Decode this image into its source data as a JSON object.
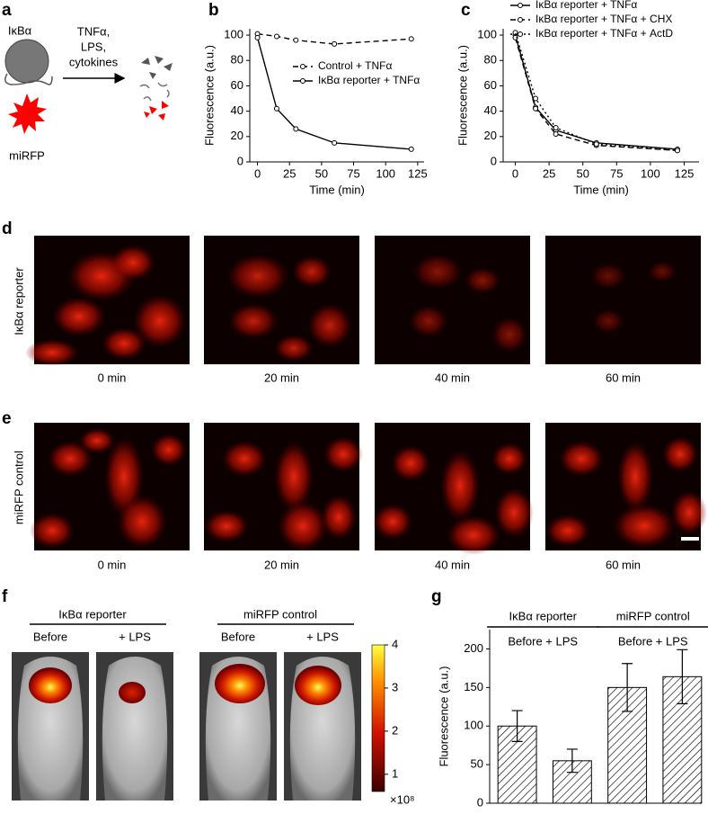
{
  "panel_labels": [
    "a",
    "b",
    "c",
    "d",
    "e",
    "f",
    "g"
  ],
  "panel_a": {
    "protein": "IκBα",
    "stimuli": [
      "TNFα,",
      "LPS,",
      "cytokines"
    ],
    "fluorophore": "miRFP"
  },
  "chart_data": [
    {
      "type": "line",
      "xlabel": "Time (min)",
      "ylabel": "Fluorescence (a.u.)",
      "x": [
        0,
        15,
        30,
        60,
        120
      ],
      "series": [
        {
          "name": "Control + TNFα",
          "color": "#000000",
          "line_style": "dashed",
          "values": [
            101,
            99,
            96,
            93,
            97
          ]
        },
        {
          "name": "IκBα reporter + TNFα",
          "color": "#000000",
          "line_style": "solid",
          "values": [
            98,
            42,
            26,
            15,
            10
          ]
        }
      ],
      "xlim": [
        -6,
        130
      ],
      "xticks": [
        0,
        25,
        50,
        75,
        100,
        125
      ],
      "ylim": [
        0,
        105
      ],
      "yticks": [
        0,
        20,
        40,
        60,
        80,
        100
      ],
      "legend": "center-right"
    },
    {
      "type": "line",
      "xlabel": "Time (min)",
      "ylabel": "Fluorescence (a.u.)",
      "x": [
        0,
        15,
        30,
        60,
        120
      ],
      "series": [
        {
          "name": "IκBα reporter + TNFα",
          "color": "#000000",
          "line_style": "solid",
          "values": [
            100,
            43,
            25,
            15,
            10
          ]
        },
        {
          "name": "IκBα reporter + TNFα + CHX",
          "color": "#000000",
          "line_style": "dashed",
          "values": [
            98,
            42,
            22,
            13,
            9
          ]
        },
        {
          "name": "IκBα reporter + TNFα + ActD",
          "color": "#000000",
          "line_style": "dotted",
          "values": [
            102,
            50,
            27,
            14,
            9
          ]
        }
      ],
      "xlim": [
        -9,
        136
      ],
      "xticks": [
        0,
        25,
        50,
        75,
        100,
        125
      ],
      "ylim": [
        0,
        105
      ],
      "yticks": [
        0,
        20,
        40,
        60,
        80,
        100
      ],
      "legend": "top-right"
    },
    {
      "type": "bar",
      "ylabel": "Fluorescence (a.u.)",
      "categories": [
        null,
        null,
        null,
        null
      ],
      "values": [
        100,
        55,
        150,
        164
      ],
      "errors": [
        20,
        15,
        31,
        35
      ],
      "groups": [
        {
          "name": "IκBα reporter",
          "label": "Before + LPS"
        },
        {
          "name": "miRFP control",
          "label": "Before + LPS"
        }
      ],
      "color": "#000000",
      "fill": "hatch",
      "ylim": [
        0,
        225
      ],
      "yticks": [
        0,
        50,
        100,
        150,
        200
      ]
    }
  ],
  "panel_d": {
    "row_label": "IκBα reporter",
    "times": [
      "0 min",
      "20 min",
      "40 min",
      "60 min"
    ]
  },
  "panel_e": {
    "row_label": "miRFP control",
    "times": [
      "0 min",
      "20 min",
      "40 min",
      "60 min"
    ]
  },
  "panel_f": {
    "groups": [
      {
        "name": "IκBα reporter",
        "conditions": [
          "Before",
          "+ LPS"
        ]
      },
      {
        "name": "miRFP control",
        "conditions": [
          "Before",
          "+ LPS"
        ]
      }
    ],
    "colorbar": {
      "lim": [
        0.6,
        4
      ],
      "ticks": [
        1,
        2,
        3,
        4
      ],
      "unit": "×10⁸"
    }
  }
}
